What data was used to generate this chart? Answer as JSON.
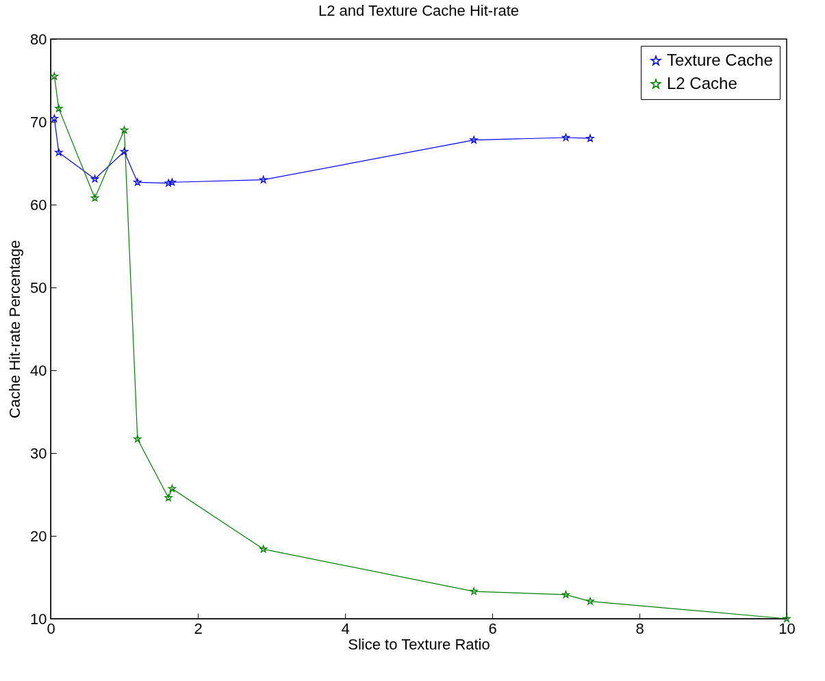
{
  "chart_data": {
    "type": "line",
    "title": "L2 and Texture Cache Hit-rate",
    "xlabel": "Slice to Texture Ratio",
    "ylabel": "Cache Hit-rate Percentage",
    "series": [
      {
        "name": "Texture Cache",
        "color": "#0000ff",
        "x": [
          0.05,
          0.11,
          0.6,
          1.0,
          1.18,
          1.6,
          1.65,
          2.89,
          5.75,
          7.0,
          7.33
        ],
        "values": [
          70.4,
          66.3,
          63.1,
          66.4,
          62.7,
          62.6,
          62.7,
          63.0,
          67.8,
          68.1,
          68.0
        ]
      },
      {
        "name": "L2 Cache",
        "color": "#008000",
        "x": [
          0.05,
          0.11,
          0.6,
          1.0,
          1.18,
          1.6,
          1.65,
          2.89,
          5.75,
          7.0,
          7.33,
          10
        ],
        "values": [
          75.5,
          71.6,
          60.8,
          69.0,
          31.7,
          24.6,
          25.7,
          18.4,
          13.3,
          12.9,
          12.1,
          10.0
        ]
      }
    ],
    "xlim": [
      0,
      10
    ],
    "xticks": [
      0,
      2,
      4,
      6,
      8,
      10
    ],
    "ylim": [
      10,
      80
    ],
    "yticks": [
      10,
      20,
      30,
      40,
      50,
      60,
      70,
      80
    ],
    "grid": false,
    "legend": "top right",
    "marker": "star",
    "line_style": "solid"
  }
}
